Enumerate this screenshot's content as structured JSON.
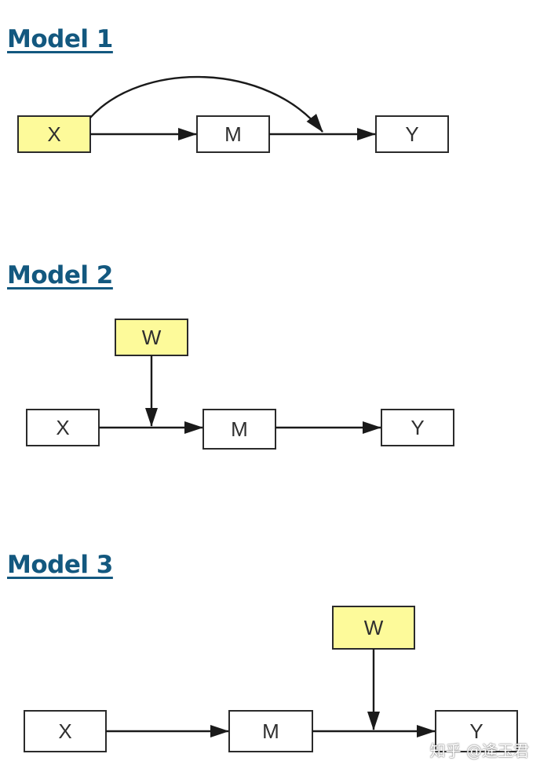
{
  "models": [
    {
      "heading": "Model 1",
      "nodes": {
        "x": "X",
        "m": "M",
        "y": "Y"
      }
    },
    {
      "heading": "Model 2",
      "nodes": {
        "w": "W",
        "x": "X",
        "m": "M",
        "y": "Y"
      }
    },
    {
      "heading": "Model 3",
      "nodes": {
        "w": "W",
        "x": "X",
        "m": "M",
        "y": "Y"
      }
    }
  ],
  "colors": {
    "heading": "#13587f",
    "highlight_box": "#fdfa9a",
    "plain_box": "#ffffff",
    "edge": "#1a1a1a"
  },
  "watermark": "知乎 @逄玉君"
}
